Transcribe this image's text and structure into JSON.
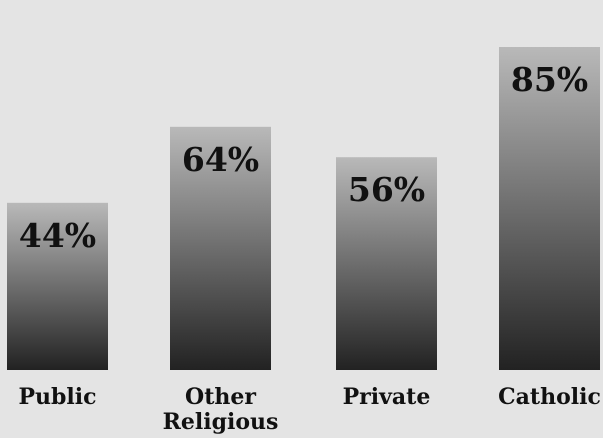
{
  "chart_data": {
    "type": "bar",
    "categories": [
      "Public",
      "Other Religious",
      "Private",
      "Catholic"
    ],
    "category_label_lines": [
      [
        "Public"
      ],
      [
        "Other",
        "Religious"
      ],
      [
        "Private"
      ],
      [
        "Catholic"
      ]
    ],
    "values": [
      44,
      64,
      56,
      85
    ],
    "value_labels": [
      "44%",
      "64%",
      "56%",
      "85%"
    ],
    "ylim": [
      0,
      100
    ],
    "bar_gradient": {
      "top": "#b9b9b9",
      "bottom": "#222222"
    },
    "grid": false,
    "legend": "none"
  }
}
